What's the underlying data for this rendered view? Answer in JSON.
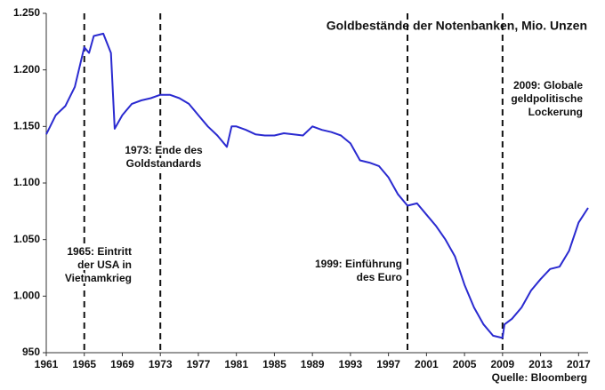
{
  "chart_data": {
    "type": "line",
    "title": "Goldbestände der Notenbanken, Mio. Unzen",
    "source": "Quelle:  Bloomberg",
    "xlim": [
      1961,
      2018
    ],
    "xticks": [
      1961,
      1965,
      1969,
      1973,
      1977,
      1981,
      1985,
      1989,
      1993,
      1997,
      2001,
      2005,
      2009,
      2013,
      2017
    ],
    "ylim": [
      950,
      1250
    ],
    "yticks": [
      {
        "value": 950,
        "label": "950"
      },
      {
        "value": 1000,
        "label": "1.000"
      },
      {
        "value": 1050,
        "label": "1.050"
      },
      {
        "value": 1100,
        "label": "1.100"
      },
      {
        "value": 1150,
        "label": "1.150"
      },
      {
        "value": 1200,
        "label": "1.200"
      },
      {
        "value": 1250,
        "label": "1.250"
      }
    ],
    "x": [
      1961,
      1962,
      1963,
      1964,
      1965,
      1965.5,
      1966,
      1967,
      1967.8,
      1968.2,
      1969,
      1970,
      1971,
      1972,
      1973,
      1974,
      1975,
      1976,
      1977,
      1978,
      1979,
      1980,
      1980.5,
      1981,
      1982,
      1983,
      1984,
      1985,
      1986,
      1987,
      1988,
      1989,
      1990,
      1991,
      1992,
      1993,
      1994,
      1995,
      1996,
      1997,
      1998,
      1999,
      2000,
      2001,
      2002,
      2003,
      2004,
      2005,
      2006,
      2007,
      2008,
      2009,
      2009.2,
      2010,
      2011,
      2012,
      2013,
      2014,
      2015,
      2016,
      2017,
      2018
    ],
    "series": [
      {
        "color": "#2a2ad0",
        "values": [
          1143,
          1160,
          1168,
          1185,
          1220,
          1215,
          1230,
          1232,
          1215,
          1148,
          1160,
          1170,
          1173,
          1175,
          1178,
          1178,
          1175,
          1170,
          1160,
          1150,
          1142,
          1132,
          1150,
          1150,
          1147,
          1143,
          1142,
          1142,
          1144,
          1143,
          1142,
          1150,
          1147,
          1145,
          1142,
          1135,
          1120,
          1118,
          1115,
          1105,
          1090,
          1080,
          1082,
          1072,
          1062,
          1050,
          1035,
          1010,
          990,
          975,
          965,
          963,
          975,
          980,
          990,
          1005,
          1015,
          1024,
          1026,
          1040,
          1065,
          1078
        ]
      }
    ],
    "annotations": [
      {
        "x": 1965,
        "text": [
          "1965: Eintritt",
          "der USA in",
          "Vietnamkrieg"
        ]
      },
      {
        "x": 1973,
        "text": [
          "1973: Ende des",
          "Goldstandards"
        ]
      },
      {
        "x": 1999,
        "text": [
          "1999: Einführung",
          "des Euro"
        ]
      },
      {
        "x": 2009,
        "text": [
          "2009: Globale",
          "geldpolitische",
          "Lockerung"
        ]
      }
    ]
  }
}
